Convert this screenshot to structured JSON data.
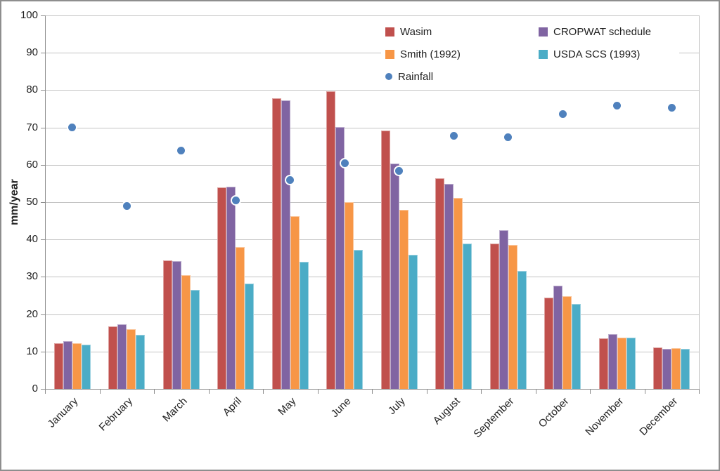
{
  "chart_data": {
    "type": "bar",
    "title": "",
    "categories": [
      "January",
      "February",
      "March",
      "April",
      "May",
      "June",
      "July",
      "August",
      "September",
      "October",
      "November",
      "December"
    ],
    "series": [
      {
        "name": "Wasim",
        "type": "bar",
        "color": "#C0504D",
        "values": [
          12.3,
          16.8,
          34.4,
          53.9,
          77.8,
          79.7,
          69.2,
          56.4,
          38.9,
          24.4,
          13.5,
          11.1
        ]
      },
      {
        "name": "CROPWAT schedule",
        "type": "bar",
        "color": "#8064A2",
        "values": [
          12.8,
          17.2,
          34.2,
          54.2,
          77.3,
          70.1,
          60.3,
          54.8,
          42.5,
          27.6,
          14.6,
          10.7
        ]
      },
      {
        "name": "Smith (1992)",
        "type": "bar",
        "color": "#F79646",
        "values": [
          12.2,
          16.0,
          30.4,
          37.9,
          46.2,
          50.0,
          47.9,
          51.2,
          38.6,
          24.9,
          13.8,
          10.9
        ]
      },
      {
        "name": "USDA SCS (1993)",
        "type": "bar",
        "color": "#4BACC6",
        "values": [
          11.8,
          14.4,
          26.5,
          28.2,
          34.0,
          37.3,
          35.9,
          39.0,
          31.5,
          22.8,
          13.8,
          10.7
        ]
      },
      {
        "name": "Rainfall",
        "type": "scatter",
        "color": "#4F81BD",
        "values": [
          70.1,
          49.0,
          63.9,
          50.4,
          55.9,
          60.4,
          58.3,
          67.8,
          67.4,
          73.5,
          75.8,
          75.3
        ]
      }
    ],
    "xlabel": "",
    "ylabel": "mm/year",
    "ylim": [
      0,
      100
    ],
    "yticks": [
      0,
      10,
      20,
      30,
      40,
      50,
      60,
      70,
      80,
      90,
      100
    ],
    "grid": true,
    "legend_position": "inside-top-right",
    "colors": {
      "gridline": "#C3C3C3",
      "axis": "#8E8E8E",
      "tick_text": "#1F1F1F",
      "background": "#FFFFFF",
      "frame_border": "#8E8E8E"
    }
  }
}
